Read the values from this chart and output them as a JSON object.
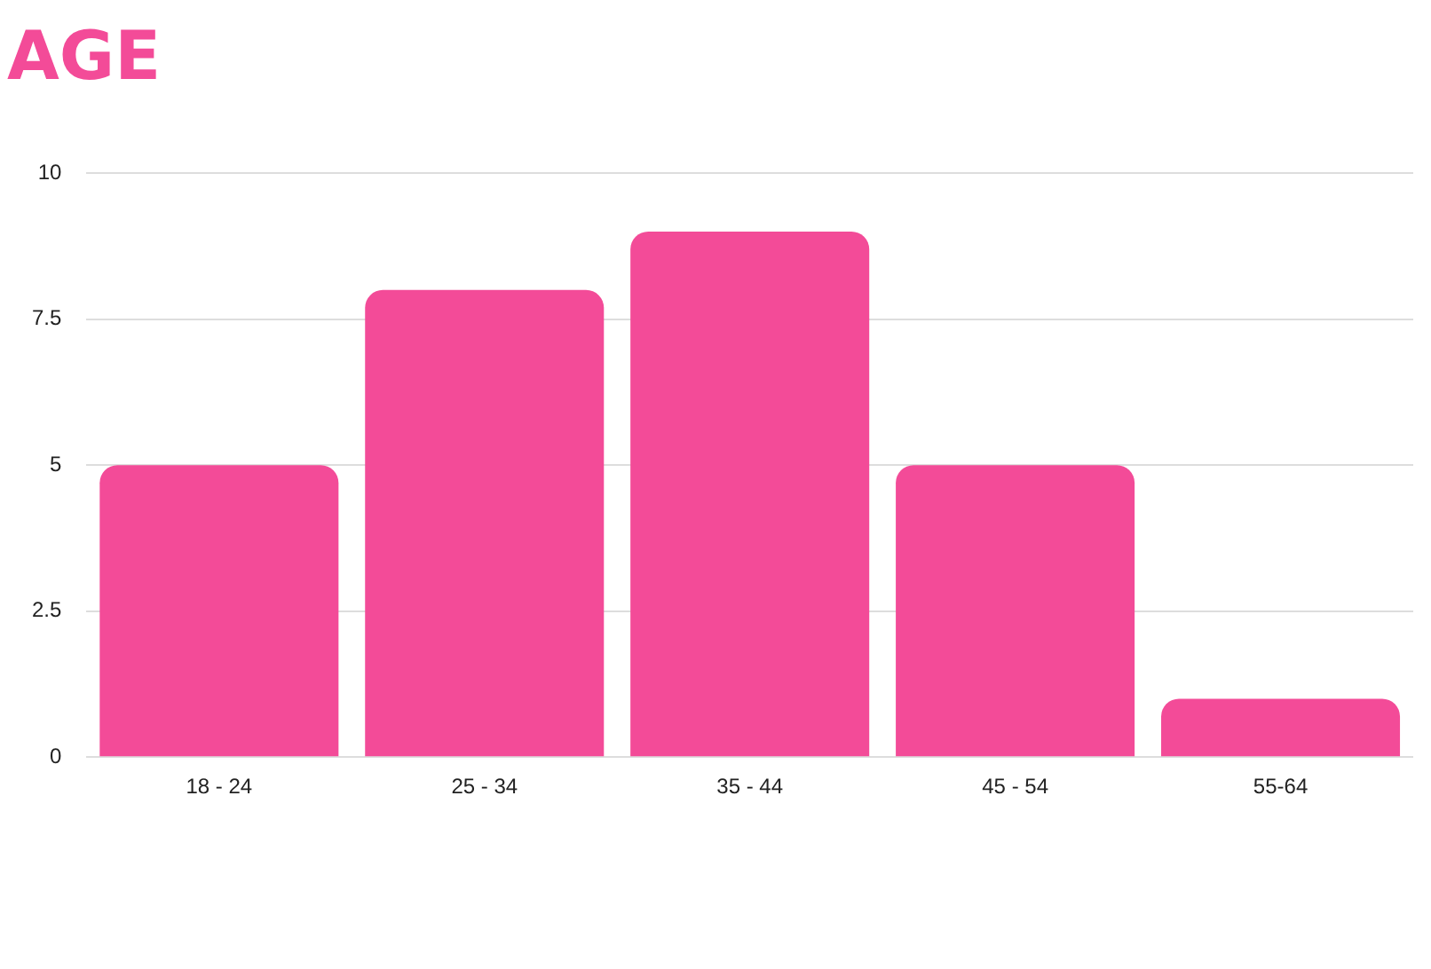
{
  "chart_data": {
    "type": "bar",
    "title": "AGE",
    "categories": [
      "18 - 24",
      "25 - 34",
      "35 - 44",
      "45 - 54",
      "55-64"
    ],
    "values": [
      5,
      8,
      9,
      5,
      1
    ],
    "color": "#f34b98",
    "ylim": [
      0,
      10
    ],
    "yticks": [
      0,
      2.5,
      5,
      7.5,
      10
    ],
    "grid": "y"
  }
}
